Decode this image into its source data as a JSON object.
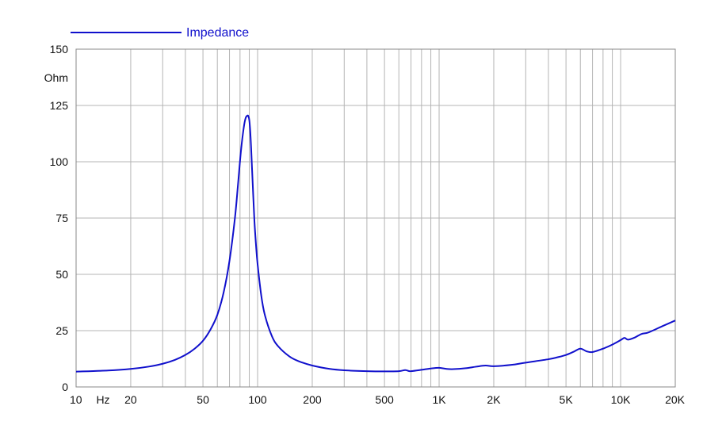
{
  "chart_data": {
    "type": "line",
    "title": "",
    "xlabel": "Hz",
    "ylabel": "Ohm",
    "x_scale": "log",
    "xlim": [
      10,
      20000
    ],
    "ylim": [
      0,
      150
    ],
    "grid": true,
    "legend_position": "top-left",
    "x_ticks": [
      {
        "value": 10,
        "label": "10"
      },
      {
        "value": 20,
        "label": "20"
      },
      {
        "value": 50,
        "label": "50"
      },
      {
        "value": 100,
        "label": "100"
      },
      {
        "value": 200,
        "label": "200"
      },
      {
        "value": 500,
        "label": "500"
      },
      {
        "value": 1000,
        "label": "1K"
      },
      {
        "value": 2000,
        "label": "2K"
      },
      {
        "value": 5000,
        "label": "5K"
      },
      {
        "value": 10000,
        "label": "10K"
      },
      {
        "value": 20000,
        "label": "20K"
      }
    ],
    "y_ticks": [
      {
        "value": 0,
        "label": "0"
      },
      {
        "value": 25,
        "label": "25"
      },
      {
        "value": 50,
        "label": "50"
      },
      {
        "value": 75,
        "label": "75"
      },
      {
        "value": 100,
        "label": "100"
      },
      {
        "value": 125,
        "label": "125"
      },
      {
        "value": 150,
        "label": "150"
      }
    ],
    "series": [
      {
        "name": "Impedance",
        "color": "#1010cc",
        "x": [
          10,
          15,
          20,
          25,
          30,
          35,
          40,
          45,
          50,
          55,
          60,
          65,
          70,
          75,
          78,
          81,
          84,
          86,
          88,
          89,
          90,
          91,
          92,
          94,
          96,
          98,
          100,
          105,
          110,
          120,
          130,
          150,
          170,
          200,
          250,
          300,
          400,
          500,
          600,
          650,
          680,
          700,
          800,
          900,
          1000,
          1100,
          1200,
          1400,
          1600,
          1800,
          2000,
          2500,
          3000,
          4000,
          4500,
          5000,
          5500,
          6000,
          6500,
          7000,
          8000,
          9000,
          10000,
          10500,
          11000,
          12000,
          13000,
          14000,
          15000,
          17000,
          20000
        ],
        "y": [
          6.8,
          7.3,
          8.0,
          9.0,
          10.3,
          12.0,
          14.2,
          17.0,
          20.5,
          25.5,
          32.0,
          42.0,
          56.0,
          75.0,
          90.0,
          105.0,
          115.5,
          119.5,
          120.5,
          120.2,
          118.5,
          114.0,
          107.0,
          90.0,
          74.0,
          63.0,
          54.5,
          40.0,
          31.5,
          22.5,
          18.0,
          13.5,
          11.3,
          9.5,
          8.0,
          7.4,
          7.0,
          6.9,
          7.0,
          7.5,
          7.1,
          7.0,
          7.6,
          8.2,
          8.5,
          8.0,
          7.9,
          8.3,
          9.0,
          9.5,
          9.2,
          9.8,
          10.8,
          12.3,
          13.2,
          14.2,
          15.6,
          17.0,
          15.8,
          15.5,
          17.0,
          18.8,
          20.8,
          21.8,
          21.0,
          22.0,
          23.5,
          24.0,
          25.0,
          27.0,
          29.5
        ]
      }
    ]
  }
}
